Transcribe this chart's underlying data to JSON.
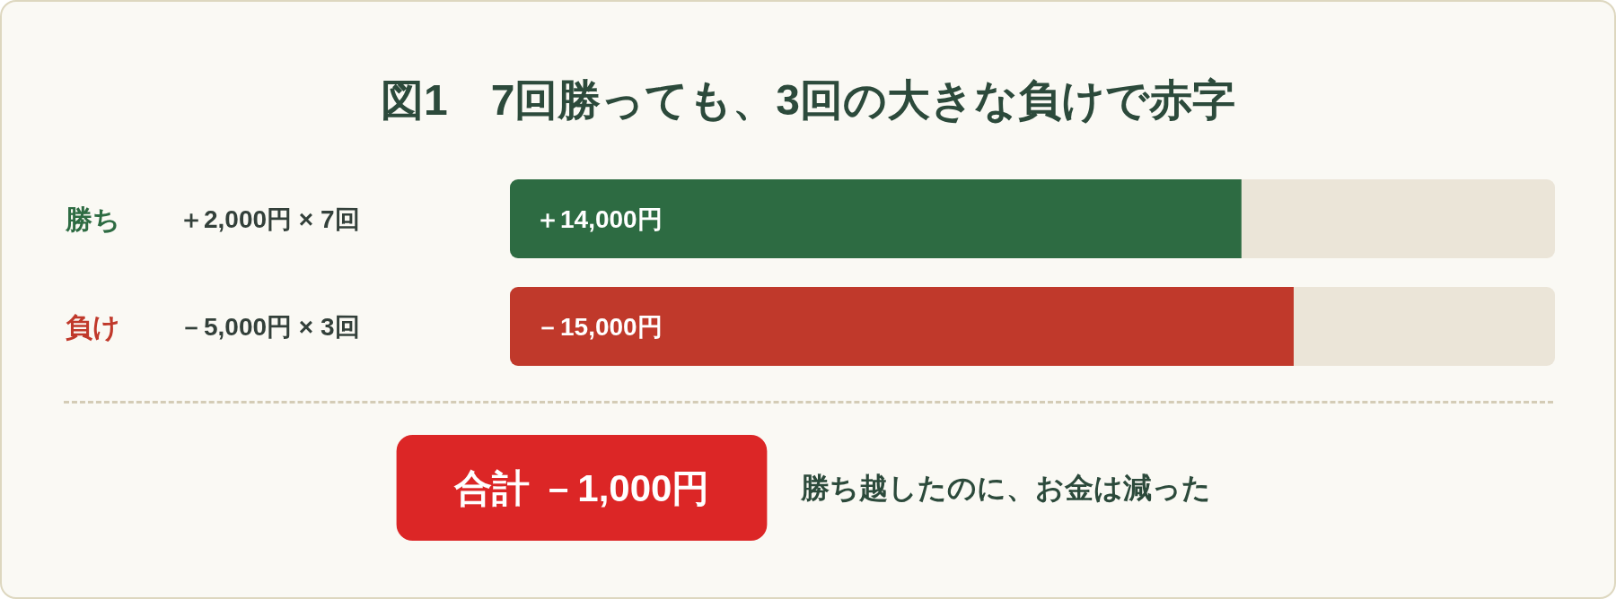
{
  "chart_data": {
    "type": "bar",
    "orientation": "horizontal",
    "title": "図1　7回勝っても、3回の大きな負けで赤字",
    "categories": [
      "勝ち",
      "負け"
    ],
    "values": [
      14000,
      15000
    ],
    "colors": [
      "#2d6b42",
      "#c0392b"
    ],
    "value_labels": [
      "＋14,000円",
      "－15,000円"
    ],
    "xlim": [
      0,
      20000
    ],
    "tick_labels": "y",
    "annotations": [
      "＋2,000円 × 7回",
      "－5,000円 × 3回",
      "合計 －1,000円",
      "勝ち越したのに、お金は減った"
    ]
  }
}
